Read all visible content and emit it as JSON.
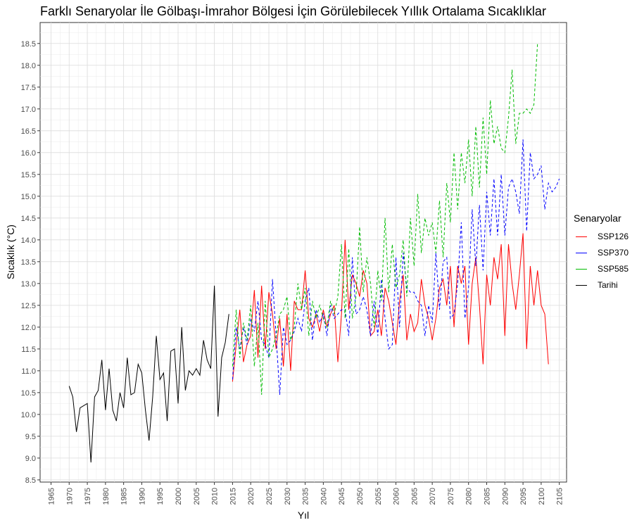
{
  "chart_data": {
    "type": "line",
    "title": "Farklı Senaryolar İle Gölbaşı-İmrahor Bölgesi İçin Görülebilecek Yıllık Ortalama Sıcaklıklar",
    "xlabel": "Yıl",
    "ylabel": "Sıcaklık (°C)",
    "xlim": [
      1962,
      2107
    ],
    "ylim": [
      8.45,
      18.98
    ],
    "x_ticks": [
      1965,
      1970,
      1975,
      1980,
      1985,
      1990,
      1995,
      2000,
      2005,
      2010,
      2015,
      2020,
      2025,
      2030,
      2035,
      2040,
      2045,
      2050,
      2055,
      2060,
      2065,
      2070,
      2075,
      2080,
      2085,
      2090,
      2095,
      2100,
      2105
    ],
    "y_ticks": [
      8.5,
      9.0,
      9.5,
      10.0,
      10.5,
      11.0,
      11.5,
      12.0,
      12.5,
      13.0,
      13.5,
      14.0,
      14.5,
      15.0,
      15.5,
      16.0,
      16.5,
      17.0,
      17.5,
      18.0,
      18.5
    ],
    "y_tick_labels": [
      "8.5",
      "9.0",
      "9.5",
      "10.0",
      "10.5",
      "11.0",
      "11.5",
      "12.0",
      "12.5",
      "13.0",
      "13.5",
      "14.0",
      "14.5",
      "15.0",
      "15.5",
      "16.0",
      "16.5",
      "17.0",
      "17.5",
      "18.0",
      "18.5"
    ],
    "grid": true,
    "legend_title": "Senaryolar",
    "legend_position": "right",
    "series": [
      {
        "name": "SSP126",
        "color": "#ff0000",
        "dash": false,
        "x_start": 2015,
        "values": [
          10.75,
          11.6,
          12.4,
          11.2,
          11.6,
          11.8,
          12.85,
          11.3,
          12.95,
          11.5,
          12.8,
          12.3,
          11.5,
          12.2,
          11.1,
          12.3,
          11.0,
          12.6,
          12.4,
          12.4,
          13.3,
          12.2,
          12.0,
          12.3,
          11.9,
          12.4,
          12.0,
          12.3,
          12.5,
          11.2,
          12.3,
          14.0,
          12.4,
          13.2,
          13.0,
          12.7,
          13.3,
          13.0,
          11.8,
          11.9,
          12.4,
          11.8,
          12.9,
          12.6,
          12.1,
          11.6,
          12.6,
          13.2,
          11.7,
          12.3,
          11.9,
          12.1,
          13.1,
          12.5,
          12.2,
          11.7,
          12.2,
          12.9,
          13.1,
          12.5,
          13.4,
          12.0,
          13.4,
          13.0,
          13.4,
          11.6,
          13.0,
          13.6,
          12.5,
          11.15,
          13.2,
          12.5,
          13.6,
          13.1,
          13.9,
          11.8,
          13.9,
          13.0,
          12.4,
          13.2,
          14.15,
          11.5,
          13.4,
          12.5,
          13.3,
          12.5,
          12.3,
          11.15
        ]
      },
      {
        "name": "SSP370",
        "color": "#0000ff",
        "dash": true,
        "x_start": 2015,
        "values": [
          10.8,
          12.0,
          11.5,
          12.0,
          11.6,
          12.2,
          11.9,
          12.6,
          11.7,
          11.6,
          11.3,
          13.1,
          11.8,
          10.45,
          12.0,
          11.6,
          11.7,
          11.9,
          12.2,
          11.9,
          12.6,
          12.9,
          11.7,
          12.4,
          12.1,
          12.3,
          11.8,
          12.5,
          12.2,
          12.3,
          12.4,
          12.4,
          11.8,
          13.6,
          12.3,
          12.4,
          12.7,
          12.4,
          11.8,
          12.6,
          11.8,
          13.1,
          12.2,
          11.5,
          11.6,
          13.6,
          12.0,
          13.7,
          12.9,
          12.8,
          12.8,
          12.6,
          12.5,
          11.8,
          12.5,
          12.1,
          13.7,
          12.4,
          13.5,
          13.6,
          12.2,
          12.3,
          13.0,
          14.4,
          12.2,
          12.9,
          14.7,
          13.4,
          14.8,
          13.3,
          15.1,
          14.1,
          15.4,
          14.1,
          15.5,
          14.1,
          15.2,
          15.4,
          15.1,
          14.6,
          16.3,
          14.2,
          16.0,
          15.4,
          15.5,
          15.7,
          14.7,
          15.3,
          15.1,
          15.2,
          15.4
        ]
      },
      {
        "name": "SSP585",
        "color": "#00bb00",
        "dash": true,
        "x_start": 2015,
        "values": [
          11.1,
          12.4,
          11.3,
          12.1,
          11.7,
          12.5,
          11.1,
          12.1,
          10.45,
          12.6,
          11.3,
          11.5,
          11.8,
          12.3,
          12.4,
          12.7,
          11.7,
          12.0,
          13.0,
          12.4,
          12.9,
          11.8,
          12.6,
          12.2,
          12.5,
          12.2,
          12.0,
          12.6,
          12.3,
          12.7,
          13.9,
          12.2,
          13.8,
          12.2,
          12.7,
          14.3,
          12.8,
          13.6,
          13.0,
          12.0,
          13.3,
          12.6,
          14.5,
          12.8,
          13.9,
          12.9,
          13.2,
          14.0,
          12.7,
          14.5,
          13.4,
          15.05,
          13.7,
          14.5,
          14.1,
          14.4,
          13.7,
          14.9,
          13.6,
          15.3,
          14.4,
          16.0,
          14.7,
          16.0,
          15.3,
          16.3,
          15.0,
          16.6,
          15.2,
          16.8,
          15.5,
          17.2,
          16.2,
          16.6,
          16.1,
          16.0,
          16.8,
          17.9,
          16.2,
          16.9,
          16.9,
          17.0,
          16.9,
          17.1,
          18.5
        ]
      },
      {
        "name": "Tarihi",
        "color": "#000000",
        "dash": false,
        "x_start": 1970,
        "values": [
          10.65,
          10.4,
          9.6,
          10.15,
          10.2,
          10.25,
          8.9,
          10.4,
          10.55,
          11.25,
          10.1,
          11.05,
          10.1,
          9.85,
          10.5,
          10.15,
          11.3,
          10.45,
          10.5,
          11.15,
          10.95,
          10.1,
          9.4,
          10.4,
          11.8,
          10.8,
          10.95,
          9.85,
          11.45,
          11.5,
          10.25,
          12.0,
          10.55,
          11.0,
          10.9,
          11.05,
          10.9,
          11.7,
          11.25,
          11.05,
          12.95,
          9.95,
          11.3,
          11.65,
          12.3
        ]
      }
    ]
  }
}
